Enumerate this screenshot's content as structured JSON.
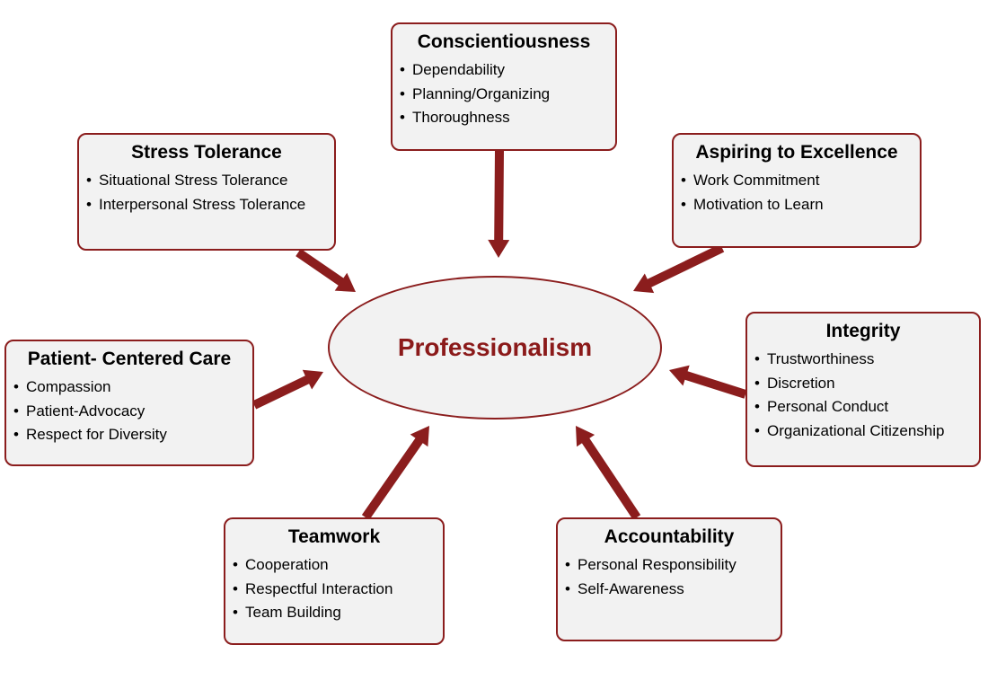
{
  "colors": {
    "accent": "#8b1d1d",
    "center_text": "#8b1a1a",
    "box_fill": "#f2f2f2"
  },
  "center": {
    "title": "Professionalism"
  },
  "boxes": [
    {
      "id": "conscientiousness",
      "title": "Conscientiousness",
      "items": [
        "Dependability",
        "Planning/Organizing",
        "Thoroughness"
      ]
    },
    {
      "id": "stress-tolerance",
      "title": "Stress Tolerance",
      "items": [
        "Situational Stress Tolerance",
        "Interpersonal Stress Tolerance"
      ]
    },
    {
      "id": "aspiring-to-excellence",
      "title": "Aspiring to Excellence",
      "items": [
        "Work Commitment",
        "Motivation to Learn"
      ]
    },
    {
      "id": "patient-centered-care",
      "title": "Patient- Centered Care",
      "items": [
        "Compassion",
        "Patient-Advocacy",
        "Respect for Diversity"
      ]
    },
    {
      "id": "integrity",
      "title": "Integrity",
      "items": [
        "Trustworthiness",
        "Discretion",
        "Personal Conduct",
        "Organizational Citizenship"
      ]
    },
    {
      "id": "teamwork",
      "title": "Teamwork",
      "items": [
        "Cooperation",
        "Respectful Interaction",
        "Team Building"
      ]
    },
    {
      "id": "accountability",
      "title": "Accountability",
      "items": [
        "Personal Responsibility",
        "Self-Awareness"
      ]
    }
  ]
}
